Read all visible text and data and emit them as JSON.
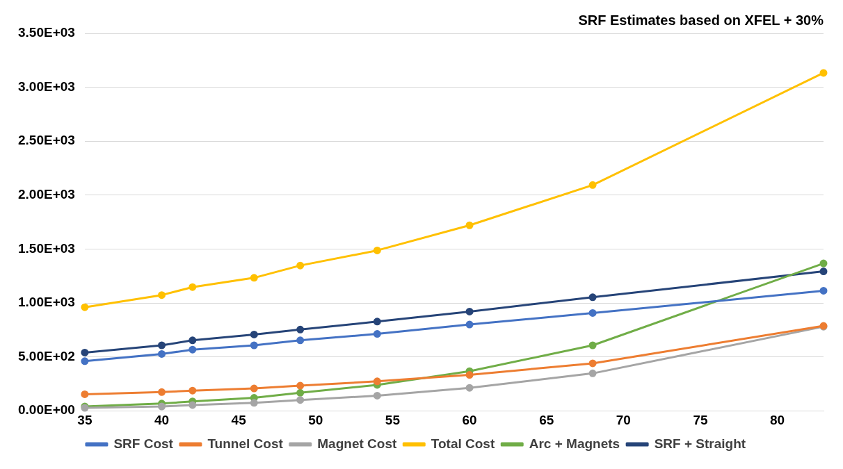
{
  "chart_data": {
    "type": "line",
    "title": "SRF Estimates based on XFEL + 30%",
    "x": [
      35,
      40,
      42,
      46,
      49,
      54,
      60,
      68,
      83
    ],
    "series": [
      {
        "name": "SRF Cost",
        "color": "#4472c4",
        "values": [
          460,
          527,
          567,
          607,
          653,
          713,
          800,
          907,
          1113
        ]
      },
      {
        "name": "Tunnel Cost",
        "color": "#ed7d31",
        "values": [
          153,
          173,
          187,
          207,
          233,
          273,
          333,
          440,
          787
        ]
      },
      {
        "name": "Magnet Cost",
        "color": "#a5a5a5",
        "values": [
          27,
          40,
          53,
          73,
          100,
          140,
          213,
          347,
          780
        ]
      },
      {
        "name": "Total Cost",
        "color": "#ffc000",
        "values": [
          960,
          1073,
          1147,
          1233,
          1347,
          1487,
          1720,
          2093,
          3133
        ]
      },
      {
        "name": "Arc + Magnets",
        "color": "#70ad47",
        "values": [
          40,
          67,
          87,
          120,
          167,
          240,
          367,
          607,
          1367
        ]
      },
      {
        "name": "SRF + Straight",
        "color": "#264478",
        "values": [
          540,
          607,
          653,
          707,
          753,
          827,
          920,
          1053,
          1293
        ]
      }
    ],
    "xlim": [
      35,
      83
    ],
    "xticks": [
      35,
      40,
      45,
      50,
      55,
      60,
      65,
      70,
      75,
      80
    ],
    "ylim": [
      0,
      3500
    ],
    "yticks": [
      {
        "value": 0,
        "label": "0.00E+00"
      },
      {
        "value": 500,
        "label": "5.00E+02"
      },
      {
        "value": 1000,
        "label": "1.00E+03"
      },
      {
        "value": 1500,
        "label": "1.50E+03"
      },
      {
        "value": 2000,
        "label": "2.00E+03"
      },
      {
        "value": 2500,
        "label": "2.50E+03"
      },
      {
        "value": 3000,
        "label": "3.00E+03"
      },
      {
        "value": 3500,
        "label": "3.50E+03"
      }
    ],
    "grid": "y",
    "legend": "bottom",
    "marker": "circle",
    "line_style": "solid"
  }
}
